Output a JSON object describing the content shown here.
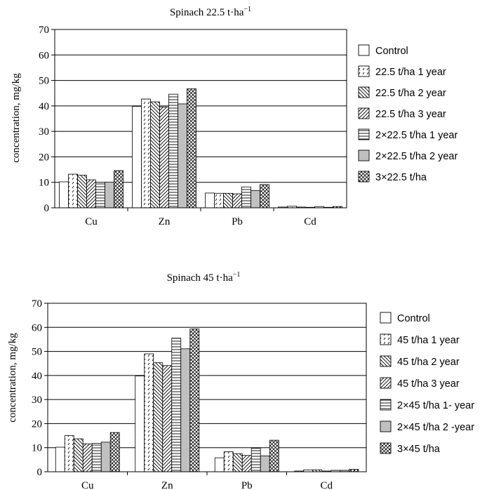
{
  "chart_data": [
    {
      "type": "bar",
      "title": "Spinach 22.5 t·ha",
      "title_sup": "−1",
      "ylabel": "concentration, mg/kg",
      "xlabel": "",
      "ylim": [
        0,
        70
      ],
      "yticks": [
        "0",
        "10",
        "20",
        "30",
        "40",
        "50",
        "60",
        "70"
      ],
      "grid": "horizontal",
      "legend": "right",
      "categories": [
        "Cu",
        "Zn",
        "Pb",
        "Cd"
      ],
      "series": [
        {
          "name": "Control",
          "pattern": "empty",
          "values": [
            10.2,
            39.8,
            5.8,
            0.3
          ]
        },
        {
          "name": "22.5 t/ha 1 year",
          "pattern": "dashes",
          "values": [
            13.2,
            42.7,
            5.7,
            0.6
          ]
        },
        {
          "name": "22.5 t/ha 2 year",
          "pattern": "back-diagonal",
          "values": [
            12.8,
            41.6,
            5.7,
            0.3
          ]
        },
        {
          "name": "22.5 t/ha 3 year",
          "pattern": "forward-diagonal",
          "values": [
            11.0,
            39.6,
            5.5,
            0.2
          ]
        },
        {
          "name": "2×22.5 t/ha 1 year",
          "pattern": "horizontal",
          "values": [
            10.0,
            44.6,
            8.2,
            0.5
          ]
        },
        {
          "name": "2×22.5 t/ha 2 year",
          "pattern": "gray",
          "values": [
            10.1,
            40.8,
            6.8,
            0.2
          ]
        },
        {
          "name": "3×22.5 t/ha",
          "pattern": "crosshatch",
          "values": [
            14.6,
            46.7,
            9.1,
            0.5
          ]
        }
      ]
    },
    {
      "type": "bar",
      "title": "Spinach 45 t·ha",
      "title_sup": "−1",
      "ylabel": "concentration, mg/kg",
      "xlabel": "",
      "ylim": [
        0,
        70
      ],
      "yticks": [
        "0",
        "10",
        "20",
        "30",
        "40",
        "50",
        "60",
        "70"
      ],
      "grid": "horizontal",
      "legend": "right",
      "categories": [
        "Cu",
        "Zn",
        "Pb",
        "Cd"
      ],
      "series": [
        {
          "name": "Control",
          "pattern": "empty",
          "values": [
            10.2,
            39.8,
            5.8,
            0.3
          ]
        },
        {
          "name": "45 t/ha 1 year",
          "pattern": "dashes",
          "values": [
            15.0,
            49.0,
            8.3,
            0.8
          ]
        },
        {
          "name": "45 t/ha 2 year",
          "pattern": "back-diagonal",
          "values": [
            13.7,
            45.3,
            7.5,
            0.8
          ]
        },
        {
          "name": "45 t/ha 3 year",
          "pattern": "forward-diagonal",
          "values": [
            11.6,
            44.1,
            6.8,
            0.3
          ]
        },
        {
          "name": "2×45 t/ha 1- year",
          "pattern": "horizontal",
          "values": [
            11.8,
            55.5,
            9.7,
            0.6
          ]
        },
        {
          "name": "2×45 t/ha 2 -year",
          "pattern": "gray",
          "values": [
            12.3,
            51.1,
            6.6,
            0.6
          ]
        },
        {
          "name": "3×45 t/ha",
          "pattern": "crosshatch",
          "values": [
            16.3,
            59.3,
            13.1,
            1.0
          ]
        }
      ]
    }
  ]
}
